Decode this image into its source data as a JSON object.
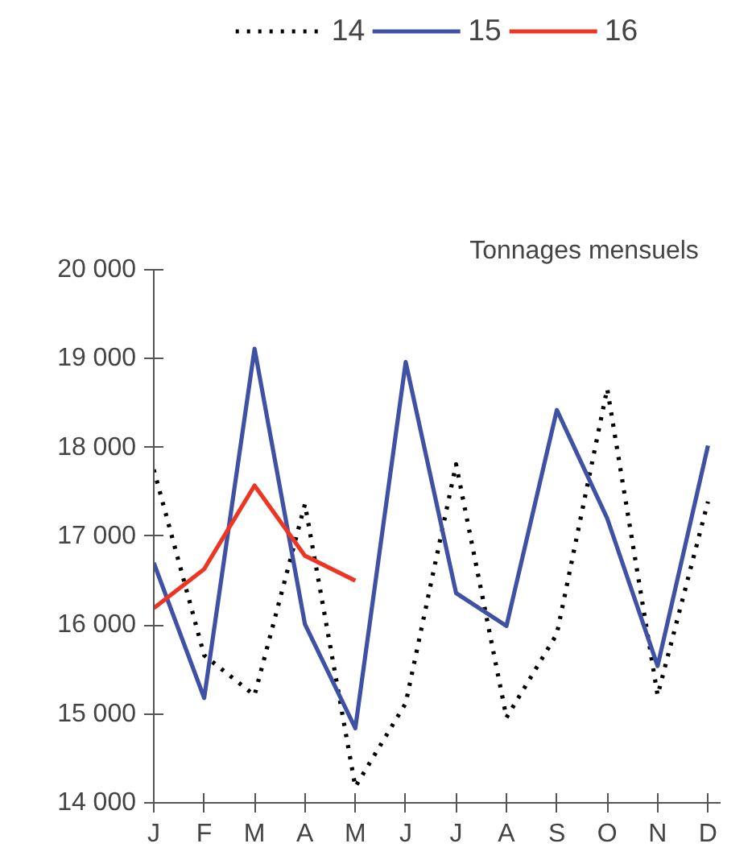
{
  "chart_data": {
    "type": "line",
    "title": "Tonnages   mensuels",
    "categories": [
      "J",
      "F",
      "M",
      "A",
      "M",
      "J",
      "J",
      "A",
      "S",
      "O",
      "N",
      "D"
    ],
    "series": [
      {
        "name": "14",
        "color": "#000000",
        "line_style": "dotted",
        "values": [
          17750,
          15660,
          15210,
          17360,
          14180,
          15120,
          17810,
          14960,
          15900,
          18660,
          15210,
          17390
        ]
      },
      {
        "name": "15",
        "color": "#3f51a5",
        "line_style": "solid",
        "values": [
          16700,
          15180,
          19110,
          16010,
          14840,
          18960,
          16360,
          15990,
          18420,
          17200,
          15540,
          18020
        ]
      },
      {
        "name": "16",
        "color": "#ee3524",
        "line_style": "solid",
        "values": [
          16190,
          16630,
          17570,
          16780,
          16500,
          null,
          null,
          null,
          null,
          null,
          null,
          null
        ]
      }
    ],
    "ylim": [
      14000,
      20000
    ],
    "yticks": [
      {
        "value": 14000,
        "label": "14 000"
      },
      {
        "value": 15000,
        "label": "15 000"
      },
      {
        "value": 16000,
        "label": "16 000"
      },
      {
        "value": 17000,
        "label": "17 000"
      },
      {
        "value": 18000,
        "label": "18 000"
      },
      {
        "value": 19000,
        "label": "19 000"
      },
      {
        "value": 20000,
        "label": "20 000"
      }
    ],
    "grid": false,
    "legend": "top",
    "marker": "none"
  }
}
